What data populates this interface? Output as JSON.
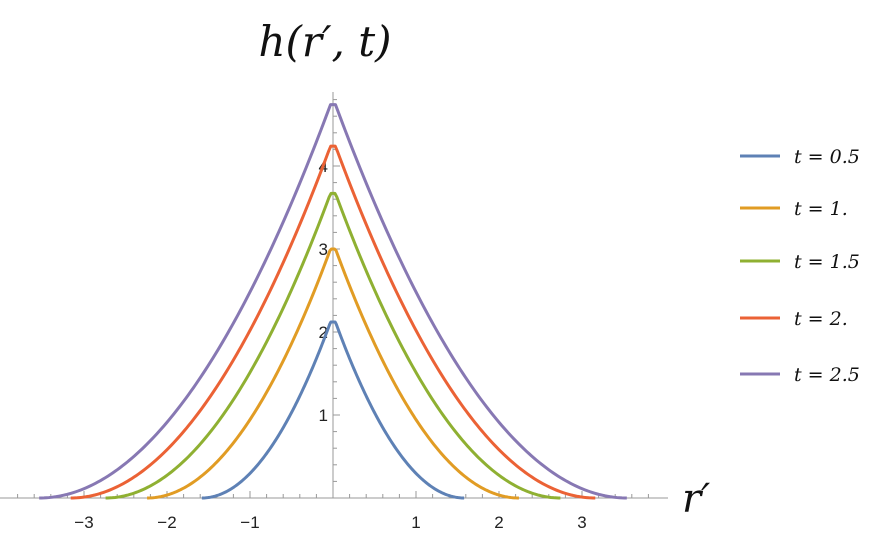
{
  "chart_data": {
    "type": "line",
    "title": "h(r′, t)",
    "xlabel": "r′",
    "ylabel": "",
    "xlim": [
      -3.95,
      3.95
    ],
    "ylim": [
      0,
      4.9
    ],
    "x_ticks": [
      -3,
      -2,
      -1,
      1,
      2,
      3
    ],
    "x_tick_labels": [
      "−3",
      "−2",
      "−1",
      "1",
      "2",
      "3"
    ],
    "y_ticks": [
      1,
      2,
      3,
      4
    ],
    "y_tick_labels": [
      "1",
      "2",
      "3",
      "4"
    ],
    "legend_position": "right",
    "grid": false,
    "series": [
      {
        "name": "t = 0.5",
        "color": "#5E81B5",
        "peak": 2.12,
        "support": 1.58
      },
      {
        "name": "t = 1.",
        "color": "#E19C24",
        "peak": 3.0,
        "support": 2.24
      },
      {
        "name": "t = 1.5",
        "color": "#8FB032",
        "peak": 3.67,
        "support": 2.74
      },
      {
        "name": "t = 2.",
        "color": "#EB6235",
        "peak": 4.24,
        "support": 3.16
      },
      {
        "name": "t = 2.5",
        "color": "#8778B3",
        "peak": 4.74,
        "support": 3.54
      }
    ]
  }
}
